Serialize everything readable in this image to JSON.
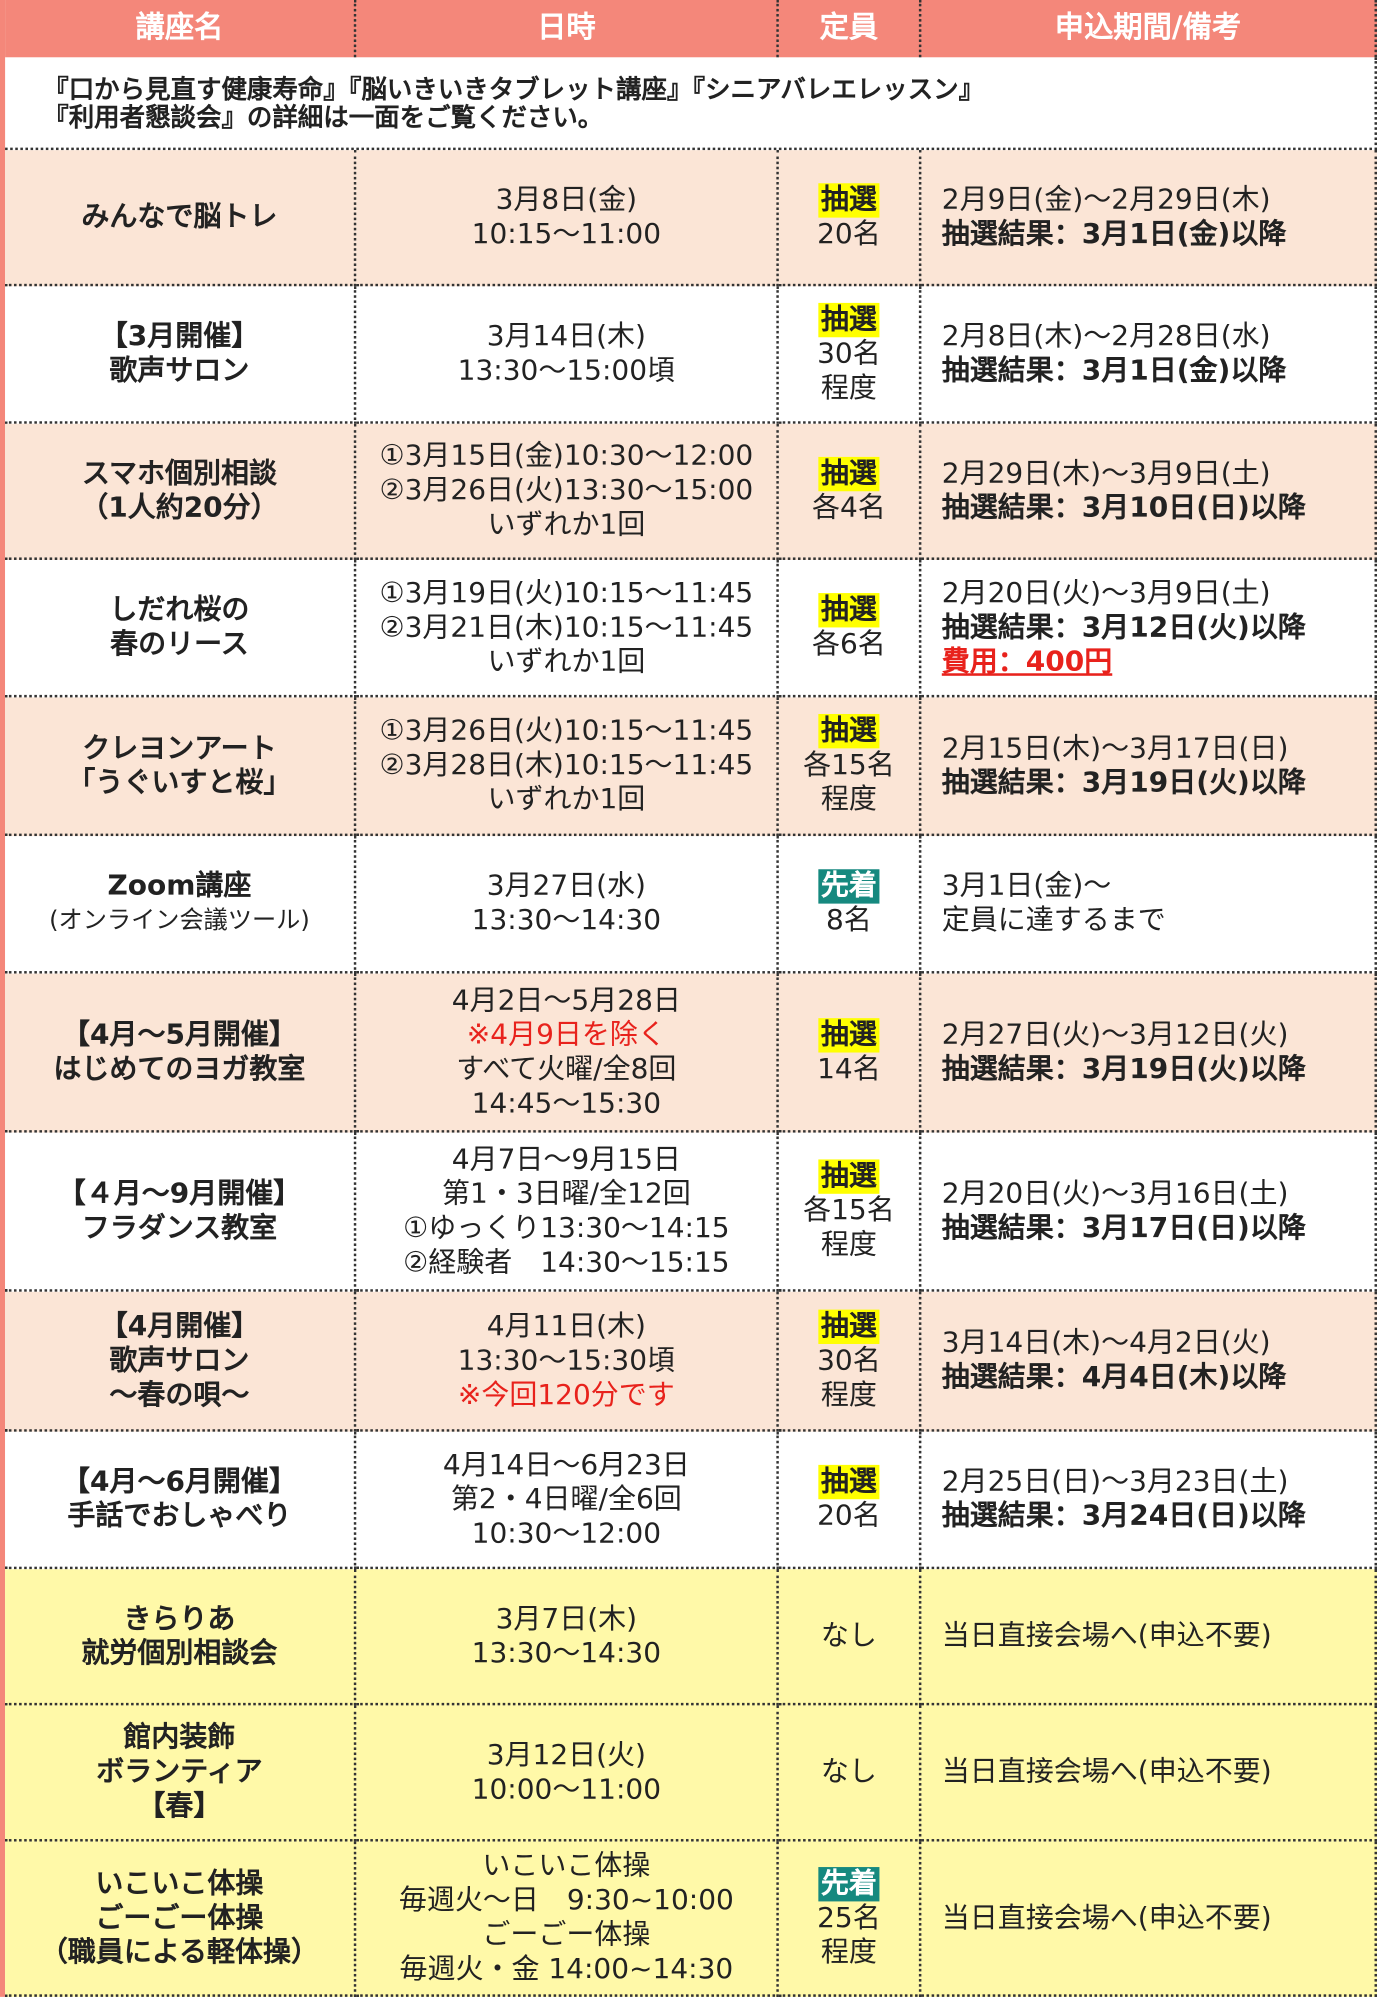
{
  "header": [
    "講座名",
    "日時",
    "定員",
    "申込期間/備考"
  ],
  "note": [
    "『口から見直す健康寿命』『脳いきいきタブレット講座』『シニアバレエレッスン』",
    "『利用者懇談会』の詳細は一面をご覧ください。"
  ],
  "rows": [
    {
      "name": [
        "みんなで脳トレ"
      ],
      "datetime": [
        "3月8日(金)",
        "10:15～11:00"
      ],
      "badge": "抽選",
      "capacity": [
        "20名"
      ],
      "period": [
        "2月9日(金)～2月29日(木)"
      ],
      "result": [
        "抽選結果：3月1日(金)以降"
      ]
    },
    {
      "name": [
        "【3月開催】",
        "歌声サロン"
      ],
      "datetime": [
        "3月14日(木)",
        "13:30～15:00頃"
      ],
      "badge": "抽選",
      "capacity": [
        "30名",
        "程度"
      ],
      "period": [
        "2月8日(木)～2月28日(水)"
      ],
      "result": [
        "抽選結果：3月1日(金)以降"
      ]
    },
    {
      "name": [
        "スマホ個別相談",
        "（1人約20分）"
      ],
      "datetime": [
        "①3月15日(金)10:30～12:00",
        "②3月26日(火)13:30～15:00",
        "いずれか1回"
      ],
      "badge": "抽選",
      "capacity": [
        "各4名"
      ],
      "period": [
        "2月29日(木)～3月9日(土)"
      ],
      "result": [
        "抽選結果：3月10日(日)以降"
      ]
    },
    {
      "name": [
        "しだれ桜の",
        "春のリース"
      ],
      "datetime": [
        "①3月19日(火)10:15～11:45",
        "②3月21日(木)10:15～11:45",
        "いずれか1回"
      ],
      "badge": "抽選",
      "capacity": [
        "各6名"
      ],
      "period": [
        "2月20日(火)～3月9日(土)"
      ],
      "result": [
        "抽選結果：3月12日(火)以降"
      ],
      "fee": "費用：400円"
    },
    {
      "name": [
        "クレヨンアート",
        "「うぐいすと桜」"
      ],
      "datetime": [
        "①3月26日(火)10:15～11:45",
        "②3月28日(木)10:15～11:45",
        "いずれか1回"
      ],
      "badge": "抽選",
      "capacity": [
        "各15名",
        "程度"
      ],
      "period": [
        "2月15日(木)～3月17日(日)"
      ],
      "result": [
        "抽選結果：3月19日(火)以降"
      ]
    },
    {
      "name": [
        "Zoom講座"
      ],
      "name_note": "(オンライン会議ツール)",
      "datetime": [
        "3月27日(水)",
        "13:30～14:30"
      ],
      "badge": "先着",
      "capacity": [
        "8名"
      ],
      "period": [
        "3月1日(金)～",
        "定員に達するまで"
      ]
    },
    {
      "name": [
        "【4月～5月開催】",
        "はじめてのヨガ教室"
      ],
      "datetime": [
        "4月2日～5月28日",
        "※4月9日を除く",
        "すべて火曜/全8回",
        "14:45～15:30"
      ],
      "badge": "抽選",
      "capacity": [
        "14名"
      ],
      "period": [
        "2月27日(火)～3月12日(火)"
      ],
      "result": [
        "抽選結果：3月19日(火)以降"
      ]
    },
    {
      "name": [
        "【４月～9月開催】",
        "フラダンス教室"
      ],
      "datetime": [
        "4月7日～9月15日",
        "第1・3日曜/全12回",
        "①ゆっくり13:30～14:15",
        "②経験者　14:30～15:15"
      ],
      "badge": "抽選",
      "capacity": [
        "各15名",
        "程度"
      ],
      "period": [
        "2月20日(火)～3月16日(土)"
      ],
      "result": [
        "抽選結果：3月17日(日)以降"
      ]
    },
    {
      "name": [
        "【4月開催】",
        "歌声サロン",
        "～春の唄～"
      ],
      "datetime": [
        "4月11日(木)",
        "13:30～15:30頃",
        "※今回120分です"
      ],
      "badge": "抽選",
      "capacity": [
        "30名",
        "程度"
      ],
      "period": [
        "3月14日(木)～4月2日(火)"
      ],
      "result": [
        "抽選結果：4月4日(木)以降"
      ]
    },
    {
      "name": [
        "【4月～6月開催】",
        "手話でおしゃべり"
      ],
      "datetime": [
        "4月14日～6月23日",
        "第2・4日曜/全6回",
        "10:30～12:00"
      ],
      "badge": "抽選",
      "capacity": [
        "20名"
      ],
      "period": [
        "2月25日(日)～3月23日(土)"
      ],
      "result": [
        "抽選結果：3月24日(日)以降"
      ]
    },
    {
      "name": [
        "きらりあ",
        "就労個別相談会"
      ],
      "datetime": [
        "3月7日(木)",
        "13:30～14:30"
      ],
      "capacity": [
        "なし"
      ],
      "period": [
        "当日直接会場へ(申込不要)"
      ]
    },
    {
      "name": [
        "館内装飾",
        "ボランティア",
        "【春】"
      ],
      "datetime": [
        "3月12日(火)",
        "10:00～11:00"
      ],
      "capacity": [
        "なし"
      ],
      "period": [
        "当日直接会場へ(申込不要)"
      ]
    },
    {
      "name": [
        "いこいこ体操",
        "ごーごー体操",
        "（職員による軽体操）"
      ],
      "datetime": [
        "いこいこ体操",
        "毎週火～日　9:30~10:00",
        "ごーごー体操",
        "毎週火・金 14:00~14:30"
      ],
      "badge": "先着",
      "capacity": [
        "25名",
        "程度"
      ],
      "period": [
        "当日直接会場へ(申込不要)"
      ]
    }
  ]
}
